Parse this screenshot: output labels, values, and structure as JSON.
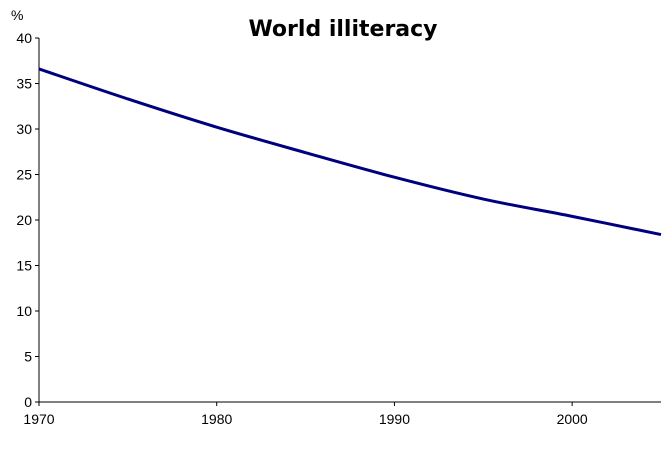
{
  "chart_data": {
    "type": "line",
    "title": "World illiteracy",
    "ylabel": "%",
    "xlabel": "",
    "xlim": [
      1970,
      2005
    ],
    "ylim": [
      0,
      40
    ],
    "x_ticks": [
      1970,
      1980,
      1990,
      2000
    ],
    "y_ticks": [
      0,
      5,
      10,
      15,
      20,
      25,
      30,
      35,
      40
    ],
    "grid": false,
    "legend": "none",
    "series": [
      {
        "color": "#00007f",
        "x": [
          1970,
          1975,
          1980,
          1985,
          1990,
          1995,
          2000,
          2005
        ],
        "values": [
          36.6,
          33.3,
          30.2,
          27.4,
          24.7,
          22.3,
          20.4,
          18.4
        ]
      }
    ]
  }
}
